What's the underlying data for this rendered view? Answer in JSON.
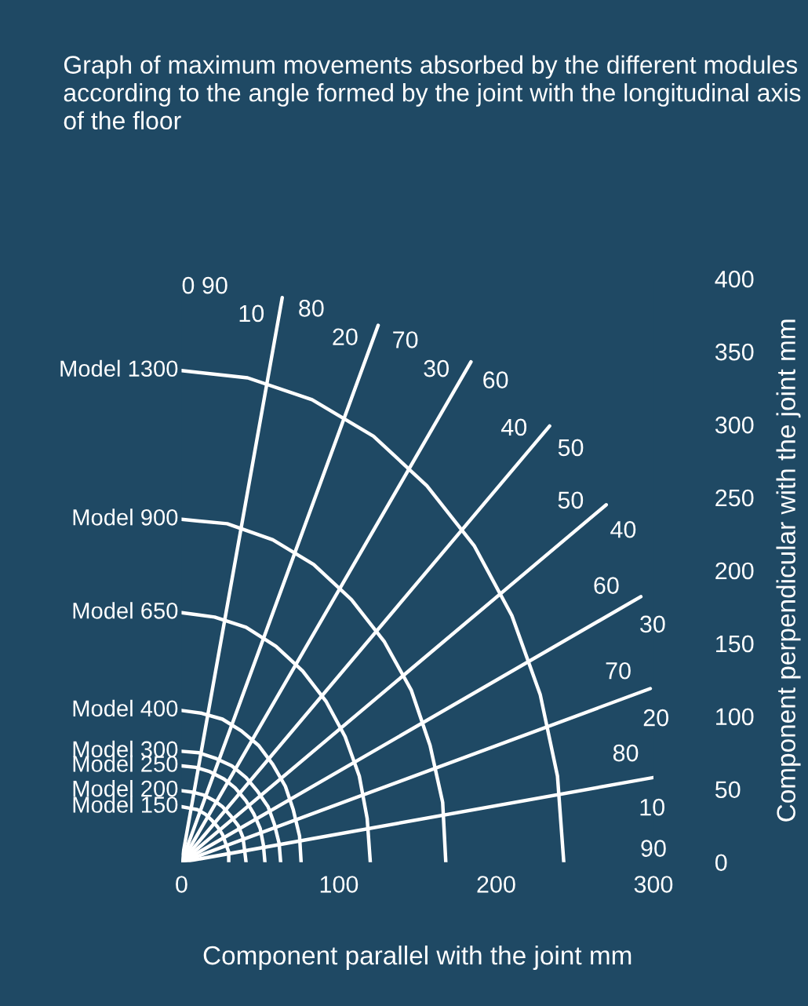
{
  "chart_data": {
    "type": "line",
    "title": "Graph of maximum movements absorbed by the different modules according to the angle formed by the joint with the longitudinal axis of the floor",
    "xlabel": "Component parallel with the joint mm",
    "ylabel": "Component perpendicular with the joint mm",
    "xlim": [
      0,
      300
    ],
    "ylim": [
      0,
      400
    ],
    "xticks": [
      0,
      100,
      200,
      300
    ],
    "yticks": [
      0,
      50,
      100,
      150,
      200,
      250,
      300,
      350,
      400
    ],
    "grid": false,
    "legend": false,
    "marker": "none",
    "line_style": "solid",
    "series": [
      {
        "name": "Model 1300",
        "color": "#ffffff",
        "x": [
          0,
          42,
          83,
          122,
          156,
          186,
          210,
          228,
          239,
          243
        ],
        "values": [
          337,
          332,
          317,
          292,
          258,
          217,
          169,
          115,
          59,
          0
        ]
      },
      {
        "name": "Model 900",
        "color": "#ffffff",
        "x": [
          0,
          29,
          58,
          84,
          108,
          129,
          146,
          158,
          166,
          168
        ],
        "values": [
          235,
          232,
          221,
          204,
          180,
          151,
          118,
          80,
          41,
          0
        ]
      },
      {
        "name": "Model 650",
        "color": "#ffffff",
        "x": [
          0,
          21,
          41,
          60,
          77,
          92,
          104,
          113,
          118,
          120
        ],
        "values": [
          171,
          168,
          161,
          148,
          131,
          110,
          86,
          59,
          30,
          0
        ]
      },
      {
        "name": "Model 400",
        "color": "#ffffff",
        "x": [
          0,
          13,
          26,
          38,
          49,
          58,
          66,
          71,
          75,
          76
        ],
        "values": [
          104,
          102,
          98,
          90,
          80,
          67,
          52,
          36,
          18,
          0
        ]
      },
      {
        "name": "Model 300",
        "color": "#ffffff",
        "x": [
          0,
          11,
          22,
          32,
          41,
          48,
          55,
          59,
          62,
          63
        ],
        "values": [
          76,
          75,
          71,
          66,
          58,
          49,
          38,
          26,
          13,
          0
        ]
      },
      {
        "name": "Model 250",
        "color": "#ffffff",
        "x": [
          0,
          9,
          18,
          27,
          34,
          41,
          46,
          50,
          52,
          53
        ],
        "values": [
          66,
          65,
          62,
          57,
          51,
          42,
          33,
          23,
          12,
          0
        ]
      },
      {
        "name": "Model 200",
        "color": "#ffffff",
        "x": [
          0,
          7,
          14,
          21,
          26,
          31,
          36,
          39,
          40,
          41
        ],
        "values": [
          49,
          48,
          46,
          42,
          38,
          32,
          25,
          17,
          9,
          0
        ]
      },
      {
        "name": "Model 150",
        "color": "#ffffff",
        "x": [
          0,
          5,
          10,
          15,
          19,
          23,
          26,
          28,
          30,
          30
        ],
        "values": [
          38,
          37,
          36,
          33,
          29,
          24,
          19,
          13,
          7,
          0
        ]
      },
      {
        "color": "#ffffff",
        "x": [
          0,
          64
        ],
        "values": [
          0,
          387
        ]
      },
      {
        "color": "#ffffff",
        "x": [
          0,
          125
        ],
        "values": [
          0,
          368
        ]
      },
      {
        "color": "#ffffff",
        "x": [
          0,
          184
        ],
        "values": [
          0,
          343
        ]
      },
      {
        "color": "#ffffff",
        "x": [
          0,
          234
        ],
        "values": [
          0,
          299
        ]
      },
      {
        "color": "#ffffff",
        "x": [
          0,
          270
        ],
        "values": [
          0,
          245
        ]
      },
      {
        "color": "#ffffff",
        "x": [
          0,
          292
        ],
        "values": [
          0,
          182
        ]
      },
      {
        "color": "#ffffff",
        "x": [
          0,
          298
        ],
        "values": [
          0,
          119
        ]
      },
      {
        "color": "#ffffff",
        "x": [
          0,
          300
        ],
        "values": [
          0,
          58
        ]
      }
    ],
    "annotations": [
      "0 90",
      "10",
      "80",
      "20",
      "70",
      "30",
      "60",
      "40",
      "50",
      "50",
      "40",
      "60",
      "30",
      "70",
      "20",
      "80",
      "10",
      "90"
    ]
  }
}
